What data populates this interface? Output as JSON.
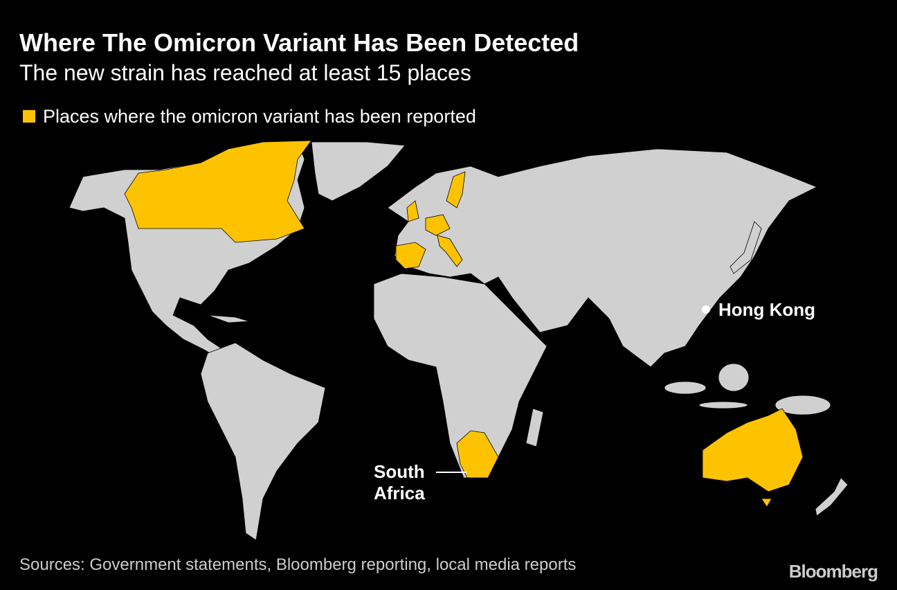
{
  "header": {
    "title": "Where The Omicron Variant Has Been Detected",
    "subtitle": "The new strain has reached at least 15 places"
  },
  "legend": {
    "label": "Places where the omicron variant has been reported"
  },
  "annotations": [
    {
      "label": "Hong Kong"
    },
    {
      "lines": [
        "South",
        "Africa"
      ]
    }
  ],
  "footer": {
    "source": "Sources: Government statements, Bloomberg reporting, local media reports",
    "brand": "Bloomberg"
  }
}
